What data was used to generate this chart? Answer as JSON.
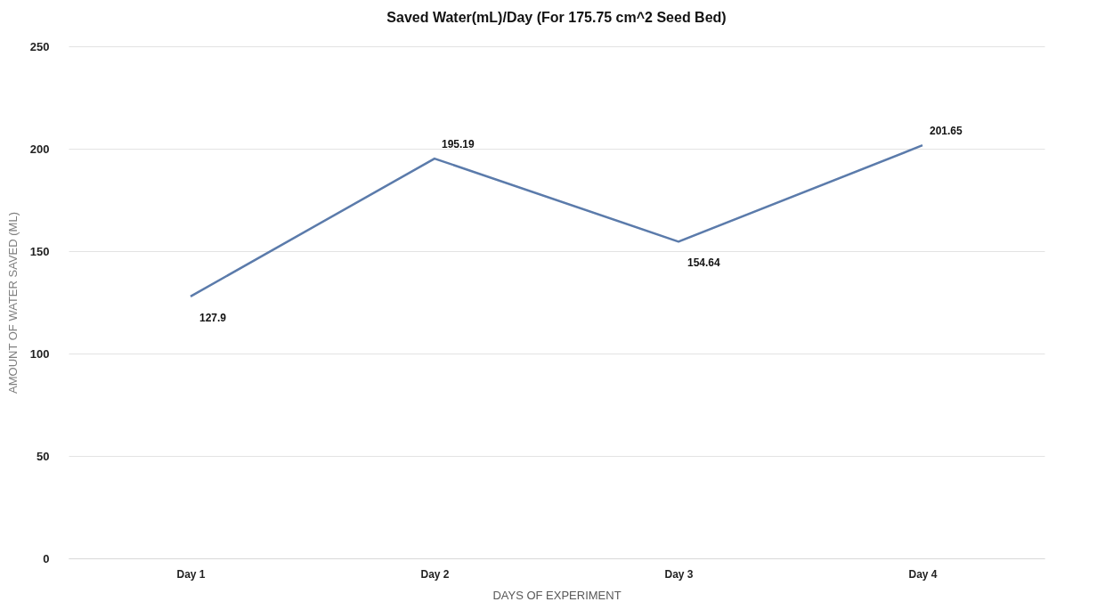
{
  "chart_data": {
    "type": "line",
    "title": "Saved Water(mL)/Day (For 175.75 cm^2 Seed Bed)",
    "xlabel": "DAYS OF EXPERIMENT",
    "ylabel": "AMOUNT OF WATER SAVED (ML)",
    "categories": [
      "Day 1",
      "Day 2",
      "Day 3",
      "Day 4"
    ],
    "series": [
      {
        "color": "#5b7bab",
        "values": [
          127.9,
          195.19,
          154.64,
          201.65
        ]
      }
    ],
    "ylim": [
      0,
      250
    ],
    "yticks": [
      0,
      50,
      100,
      150,
      200,
      250
    ],
    "grid": "y",
    "data_labels": true,
    "marker": "none",
    "line_style": "solid"
  }
}
